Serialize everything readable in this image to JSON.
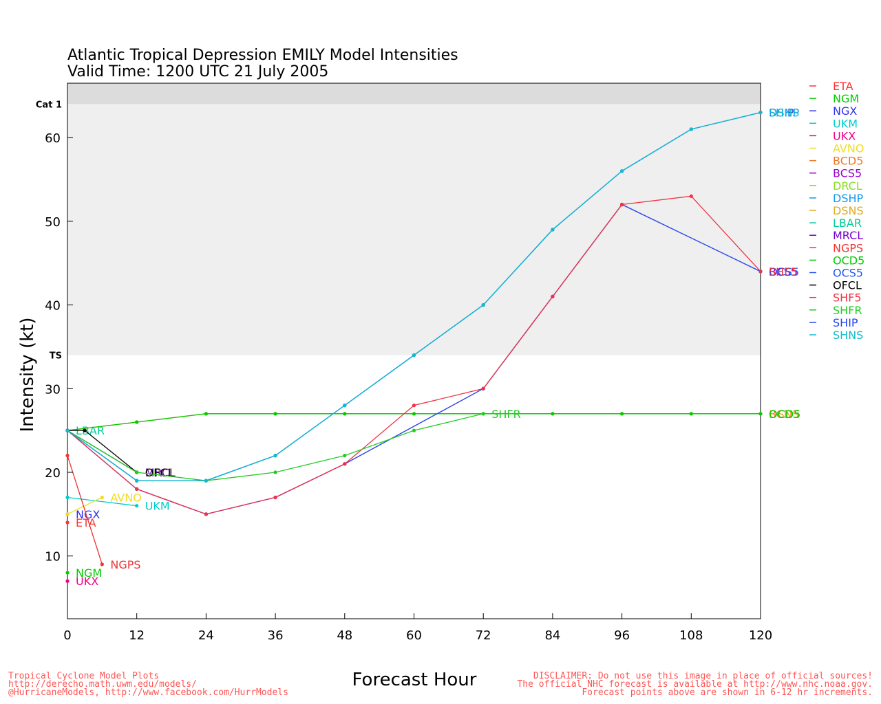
{
  "chart_data": {
    "type": "line",
    "title": "Atlantic Tropical Depression EMILY Model Intensities",
    "subtitle": "Valid Time: 1200 UTC 21 July 2005",
    "xlabel": "Forecast Hour",
    "ylabel": "Intensity (kt)",
    "xlim": [
      0,
      120
    ],
    "ylim": [
      2.5,
      66.5
    ],
    "xticks": [
      0,
      12,
      24,
      36,
      48,
      60,
      72,
      84,
      96,
      108,
      120
    ],
    "yticks": [
      10,
      20,
      30,
      40,
      50,
      60
    ],
    "bands": [
      {
        "label": "TS",
        "from": 34,
        "to": 64,
        "color": "#efefef"
      },
      {
        "label": "Cat 1",
        "from": 64,
        "to": 66.5,
        "color": "#dcdcdc"
      }
    ],
    "legend_position": "right",
    "series": [
      {
        "name": "ETA",
        "color": "#ff3333",
        "x": [
          0
        ],
        "y": [
          14
        ],
        "label": "ETA",
        "label_dy": 6
      },
      {
        "name": "NGM",
        "color": "#00cc00",
        "x": [
          0
        ],
        "y": [
          8
        ],
        "label": "NGM",
        "label_dy": 6
      },
      {
        "name": "NGX",
        "color": "#3333ee",
        "x": [
          0
        ],
        "y": [
          15
        ],
        "label": "NGX",
        "label_dy": 6
      },
      {
        "name": "UKM",
        "color": "#00cccc",
        "x": [
          0,
          12
        ],
        "y": [
          17,
          16
        ],
        "label": "UKM",
        "label_dy": 6
      },
      {
        "name": "UKX",
        "color": "#ee0088",
        "x": [
          0
        ],
        "y": [
          7
        ],
        "label": "UKX",
        "label_dy": 6
      },
      {
        "name": "AVNO",
        "color": "#eedd22",
        "x": [
          0,
          6
        ],
        "y": [
          15,
          17
        ],
        "label": "AVNO",
        "label_dy": 6
      },
      {
        "name": "BCD5",
        "color": "#ee7722",
        "x": [
          0,
          12,
          24,
          36,
          48,
          60,
          72,
          84,
          96,
          108,
          120
        ],
        "y": [
          25,
          26,
          27,
          27,
          27,
          27,
          27,
          27,
          27,
          27,
          27
        ],
        "label": "BCD5",
        "label_dy": 6
      },
      {
        "name": "BCS5",
        "color": "#9900cc",
        "x": [
          0,
          12,
          24,
          36,
          48,
          72,
          84,
          96,
          120
        ],
        "y": [
          25,
          18,
          15,
          17,
          21,
          30,
          41,
          52,
          44
        ],
        "label": "BCS5",
        "label_dy": 6
      },
      {
        "name": "DRCL",
        "color": "#88dd22",
        "x": [
          0,
          12
        ],
        "y": [
          25,
          20
        ],
        "label": "DRCL",
        "label_dy": 6
      },
      {
        "name": "DSHP",
        "color": "#1199ee",
        "x": [
          0,
          12,
          24,
          36,
          48,
          60,
          72,
          84,
          96,
          108,
          120
        ],
        "y": [
          25,
          19,
          19,
          22,
          28,
          34,
          40,
          49,
          56,
          61,
          63
        ],
        "label": "DSHP",
        "label_dy": 6
      },
      {
        "name": "DSNS",
        "color": "#ddaa22",
        "x": [
          0,
          12,
          24,
          36,
          48,
          60,
          72,
          84,
          96,
          108,
          120
        ],
        "y": [
          25,
          26,
          27,
          27,
          27,
          27,
          27,
          27,
          27,
          27,
          27
        ],
        "label": "DSNS",
        "label_dy": 6
      },
      {
        "name": "LBAR",
        "color": "#00cc99",
        "x": [
          0
        ],
        "y": [
          25
        ],
        "label": "LBAR",
        "label_dy": 6
      },
      {
        "name": "MRCL",
        "color": "#7700cc",
        "x": [
          0,
          12
        ],
        "y": [
          25,
          20
        ],
        "label": "MRCL",
        "label_dy": 6
      },
      {
        "name": "NGPS",
        "color": "#ee3333",
        "x": [
          0,
          6
        ],
        "y": [
          22,
          9
        ],
        "label": "NGPS",
        "label_dy": 6
      },
      {
        "name": "OCD5",
        "color": "#00cc00",
        "x": [
          0,
          12,
          24,
          36,
          48,
          60,
          72,
          84,
          96,
          108,
          120
        ],
        "y": [
          25,
          26,
          27,
          27,
          27,
          27,
          27,
          27,
          27,
          27,
          27
        ],
        "label": "OCD5",
        "label_dy": 6
      },
      {
        "name": "OCS5",
        "color": "#2255ee",
        "x": [
          0,
          12,
          24,
          36,
          48,
          72,
          84,
          96,
          120
        ],
        "y": [
          25,
          18,
          15,
          17,
          21,
          30,
          41,
          52,
          44
        ],
        "label": "OCS5",
        "label_dy": 6
      },
      {
        "name": "OFCL",
        "color": "#000000",
        "x": [
          0,
          3,
          12
        ],
        "y": [
          25,
          25,
          20
        ],
        "label": "OFCL",
        "label_dy": 6
      },
      {
        "name": "SHF5",
        "color": "#ee3344",
        "x": [
          0,
          12,
          24,
          36,
          48,
          60,
          72,
          84,
          96,
          108,
          120
        ],
        "y": [
          25,
          18,
          15,
          17,
          21,
          28,
          30,
          41,
          52,
          53,
          44
        ],
        "label": "SHF5",
        "label_dy": 6
      },
      {
        "name": "SHFR",
        "color": "#22cc22",
        "x": [
          0,
          12,
          24,
          36,
          48,
          60,
          72
        ],
        "y": [
          25,
          20,
          19,
          20,
          22,
          25,
          27
        ],
        "label": "SHFR",
        "label_dy": 6
      },
      {
        "name": "SHIP",
        "color": "#2244ee",
        "x": [
          0,
          12,
          24,
          36,
          48,
          60,
          72,
          84,
          96,
          108,
          120
        ],
        "y": [
          25,
          19,
          19,
          22,
          28,
          34,
          40,
          49,
          56,
          61,
          63
        ],
        "label": "SHIP",
        "label_dy": 6
      },
      {
        "name": "SHNS",
        "color": "#11bbcc",
        "x": [
          0,
          12,
          24,
          36,
          48,
          60,
          72,
          84,
          96,
          108,
          120
        ],
        "y": [
          25,
          19,
          19,
          22,
          28,
          34,
          40,
          49,
          56,
          61,
          63
        ],
        "label": "SHNS",
        "label_dy": 6
      }
    ]
  },
  "footer": {
    "left_lines": [
      "Tropical Cyclone Model Plots",
      "http://derecho.math.uwm.edu/models/",
      "@HurricaneModels, http://www.facebook.com/HurrModels"
    ],
    "right_lines": [
      "DISCLAIMER: Do not use this image in place of official sources!",
      "The official NHC forecast is available at http://www.nhc.noaa.gov.",
      "Forecast points above are shown in 6-12 hr increments."
    ]
  }
}
